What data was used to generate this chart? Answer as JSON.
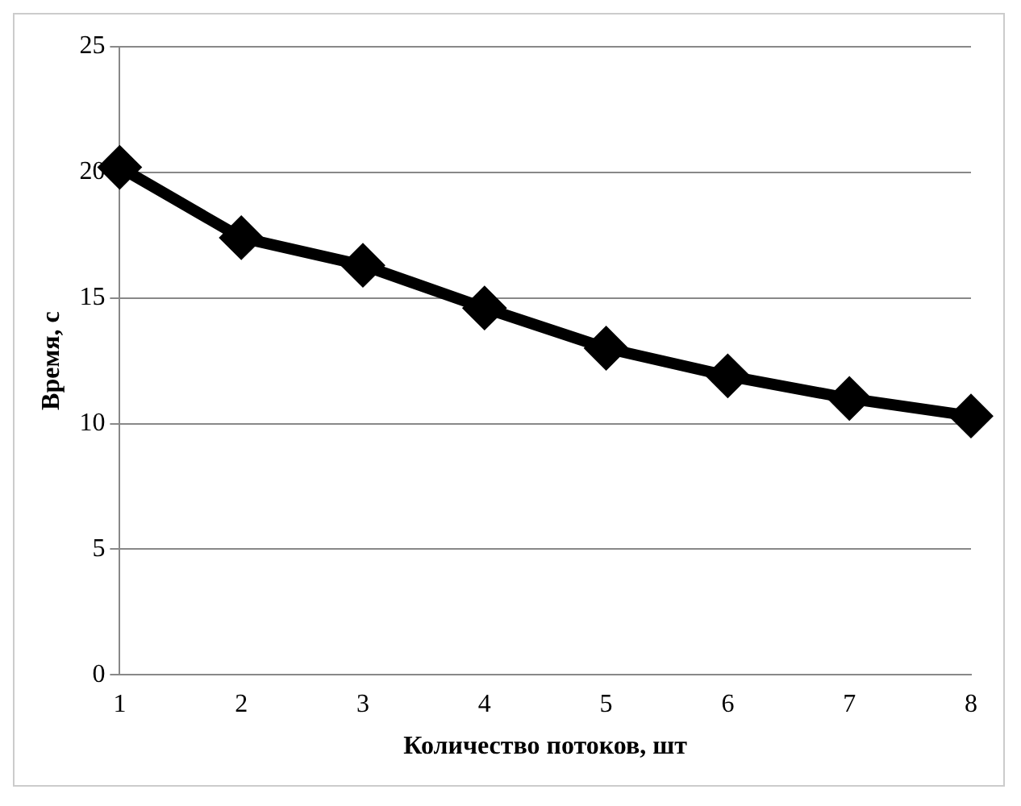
{
  "chart_data": {
    "type": "line",
    "xlabel": "Количество потоков, шт",
    "ylabel": "Время, с",
    "categories": [
      "1",
      "2",
      "3",
      "4",
      "5",
      "6",
      "7",
      "8"
    ],
    "series": [
      {
        "color": "#000000",
        "values": [
          20.2,
          17.4,
          16.3,
          14.6,
          13.0,
          11.9,
          11.0,
          10.3
        ]
      }
    ],
    "ylim": [
      0,
      25
    ],
    "yticks": [
      0,
      5,
      10,
      15,
      20,
      25
    ],
    "grid": "y",
    "legend": false,
    "marker": "diamond",
    "line_style": "solid"
  }
}
